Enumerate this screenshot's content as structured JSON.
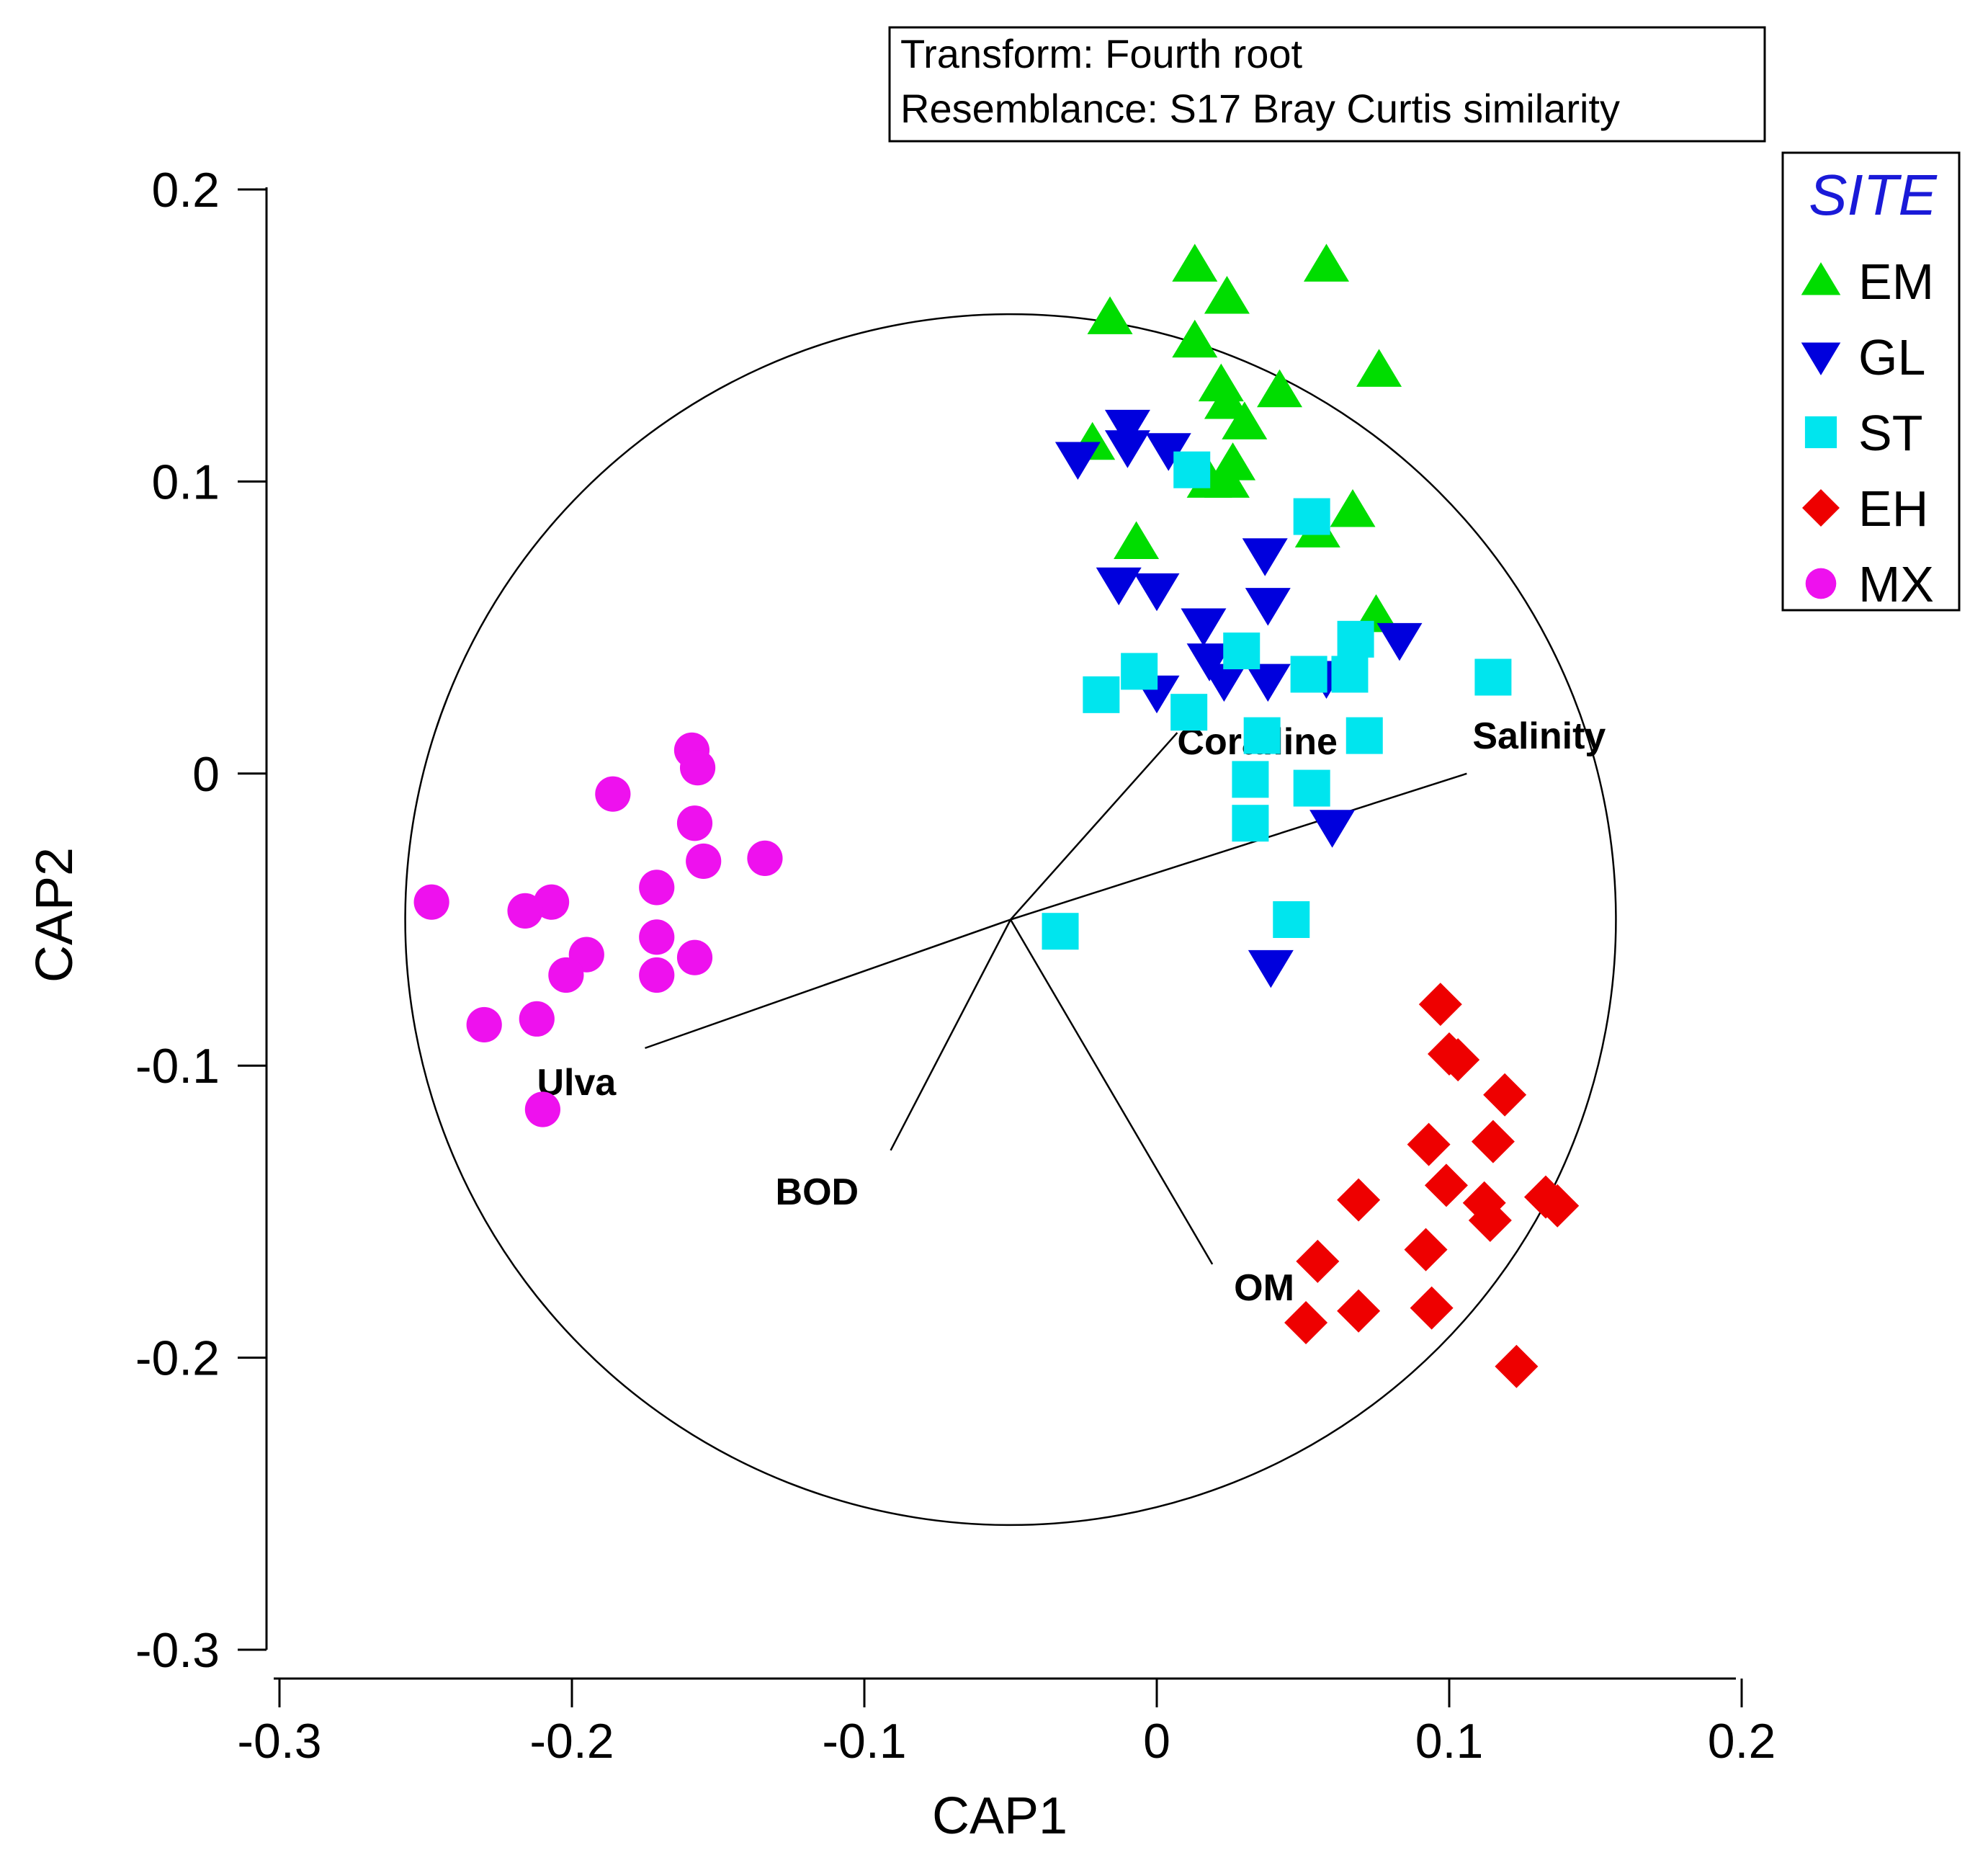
{
  "chart_data": {
    "type": "scatter",
    "title": "",
    "xlabel": "CAP1",
    "ylabel": "CAP2",
    "xlim": [
      -0.3,
      0.2
    ],
    "ylim": [
      -0.3,
      0.2
    ],
    "x_ticks": [
      "-0.3",
      "-0.2",
      "-0.1",
      "0",
      "0.1",
      "0.2"
    ],
    "y_ticks": [
      "-0.3",
      "-0.2",
      "-0.1",
      "0",
      "0.1",
      "0.2"
    ],
    "info_box": {
      "line1": "Transform: Fourth root",
      "line2": "Resemblance: S17 Bray Curtis similarity"
    },
    "legend_title": "SITE",
    "legend_title_color": "#1a1ad8",
    "correlation_circle": {
      "center": [
        -0.05,
        -0.05
      ],
      "radius": 0.207
    },
    "vectors": [
      {
        "label": "Coralline",
        "end": [
          0.007,
          0.014
        ]
      },
      {
        "label": "Salinity",
        "end": [
          0.106,
          0.0
        ]
      },
      {
        "label": "Ulva",
        "end": [
          -0.175,
          -0.094
        ]
      },
      {
        "label": "BOD",
        "end": [
          -0.091,
          -0.129
        ]
      },
      {
        "label": "OM",
        "end": [
          0.019,
          -0.168
        ]
      }
    ],
    "series": [
      {
        "name": "EM",
        "marker": "triangle-up",
        "color": "#00dd00",
        "points": [
          [
            0.013,
            0.174
          ],
          [
            0.058,
            0.174
          ],
          [
            0.024,
            0.163
          ],
          [
            -0.016,
            0.156
          ],
          [
            0.013,
            0.148
          ],
          [
            0.076,
            0.138
          ],
          [
            0.022,
            0.133
          ],
          [
            0.042,
            0.131
          ],
          [
            0.024,
            0.127
          ],
          [
            0.03,
            0.12
          ],
          [
            -0.022,
            0.113
          ],
          [
            0.026,
            0.106
          ],
          [
            0.018,
            0.1
          ],
          [
            0.024,
            0.1
          ],
          [
            0.067,
            0.09
          ],
          [
            0.055,
            0.083
          ],
          [
            -0.007,
            0.079
          ],
          [
            0.075,
            0.054
          ]
        ]
      },
      {
        "name": "GL",
        "marker": "triangle-down",
        "color": "#0000dd",
        "points": [
          [
            -0.01,
            0.119
          ],
          [
            -0.01,
            0.112
          ],
          [
            0.004,
            0.111
          ],
          [
            -0.027,
            0.108
          ],
          [
            0.037,
            0.075
          ],
          [
            -0.013,
            0.065
          ],
          [
            0.0,
            0.063
          ],
          [
            0.038,
            0.058
          ],
          [
            0.016,
            0.051
          ],
          [
            0.083,
            0.046
          ],
          [
            0.018,
            0.039
          ],
          [
            0.038,
            0.032
          ],
          [
            0.058,
            0.033
          ],
          [
            0.023,
            0.032
          ],
          [
            0.0,
            0.028
          ],
          [
            0.06,
            -0.018
          ],
          [
            0.039,
            -0.066
          ]
        ]
      },
      {
        "name": "ST",
        "marker": "square",
        "color": "#00e5ee",
        "points": [
          [
            0.012,
            0.104
          ],
          [
            0.053,
            0.088
          ],
          [
            0.068,
            0.046
          ],
          [
            0.029,
            0.042
          ],
          [
            0.115,
            0.033
          ],
          [
            -0.006,
            0.035
          ],
          [
            0.052,
            0.034
          ],
          [
            0.066,
            0.034
          ],
          [
            -0.019,
            0.027
          ],
          [
            0.011,
            0.021
          ],
          [
            0.036,
            0.013
          ],
          [
            0.071,
            0.013
          ],
          [
            0.032,
            -0.002
          ],
          [
            0.053,
            -0.005
          ],
          [
            0.032,
            -0.017
          ],
          [
            0.046,
            -0.05
          ],
          [
            -0.033,
            -0.054
          ]
        ]
      },
      {
        "name": "EH",
        "marker": "diamond",
        "color": "#ee0000",
        "points": [
          [
            0.097,
            -0.079
          ],
          [
            0.1,
            -0.096
          ],
          [
            0.103,
            -0.098
          ],
          [
            0.119,
            -0.11
          ],
          [
            0.093,
            -0.127
          ],
          [
            0.115,
            -0.126
          ],
          [
            0.099,
            -0.141
          ],
          [
            0.069,
            -0.146
          ],
          [
            0.112,
            -0.147
          ],
          [
            0.133,
            -0.145
          ],
          [
            0.114,
            -0.153
          ],
          [
            0.137,
            -0.148
          ],
          [
            0.092,
            -0.163
          ],
          [
            0.055,
            -0.167
          ],
          [
            0.069,
            -0.184
          ],
          [
            0.094,
            -0.183
          ],
          [
            0.051,
            -0.188
          ],
          [
            0.123,
            -0.203
          ]
        ]
      },
      {
        "name": "MX",
        "marker": "circle",
        "color": "#ee11ee",
        "points": [
          [
            -0.159,
            0.008
          ],
          [
            -0.157,
            0.002
          ],
          [
            -0.186,
            -0.007
          ],
          [
            -0.158,
            -0.017
          ],
          [
            -0.134,
            -0.029
          ],
          [
            -0.155,
            -0.03
          ],
          [
            -0.171,
            -0.039
          ],
          [
            -0.248,
            -0.044
          ],
          [
            -0.207,
            -0.044
          ],
          [
            -0.216,
            -0.047
          ],
          [
            -0.171,
            -0.056
          ],
          [
            -0.195,
            -0.062
          ],
          [
            -0.158,
            -0.063
          ],
          [
            -0.202,
            -0.069
          ],
          [
            -0.171,
            -0.069
          ],
          [
            -0.23,
            -0.086
          ],
          [
            -0.212,
            -0.084
          ],
          [
            -0.21,
            -0.115
          ]
        ]
      }
    ]
  }
}
